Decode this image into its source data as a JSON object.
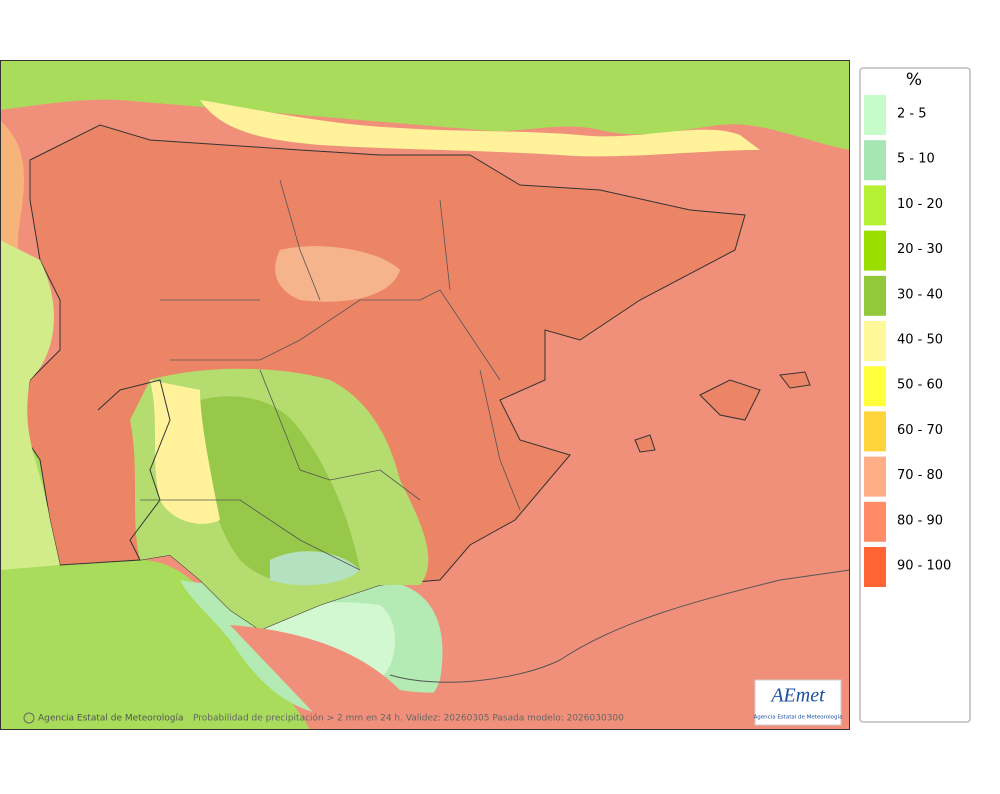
{
  "legend": {
    "title": "%",
    "items": [
      {
        "label": "2 - 5",
        "color": "#c6fcc8"
      },
      {
        "label": "5 - 10",
        "color": "#a6e6b4"
      },
      {
        "label": "10 - 20",
        "color": "#b6f032"
      },
      {
        "label": "20 - 30",
        "color": "#9ade00"
      },
      {
        "label": "30 - 40",
        "color": "#92c83c"
      },
      {
        "label": "40 - 50",
        "color": "#fff89a"
      },
      {
        "label": "50 - 60",
        "color": "#ffff3c"
      },
      {
        "label": "60 - 70",
        "color": "#ffd43a"
      },
      {
        "label": "70 - 80",
        "color": "#ffae86"
      },
      {
        "label": "80 - 90",
        "color": "#ff8c66"
      },
      {
        "label": "90 - 100",
        "color": "#ff6432"
      }
    ]
  },
  "footer": {
    "credit": "Agencia Estatal de Meteorología",
    "description": "Probabilidad de precipitación > 2 mm en 24 h. Validez: 20260305 Pasada modelo: 2026030300"
  },
  "logo": {
    "name": "AEmet",
    "subtitle": "Agencia Estatal de Meteorología"
  }
}
